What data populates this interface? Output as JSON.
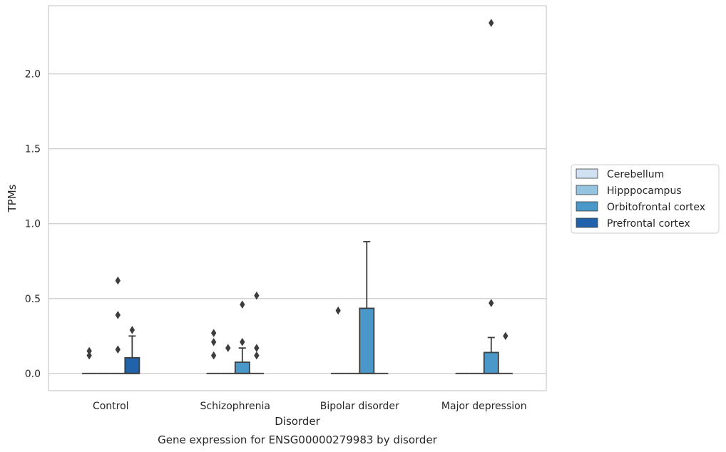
{
  "chart_data": {
    "type": "box",
    "title": "",
    "caption": "Gene expression for ENSG00000279983 by disorder",
    "xlabel": "Disorder",
    "ylabel": "TPMs",
    "ylim": [
      -0.115,
      2.455
    ],
    "yticks": [
      0.0,
      0.5,
      1.0,
      1.5,
      2.0
    ],
    "ytick_labels": [
      "0.0",
      "0.5",
      "1.0",
      "1.5",
      "2.0"
    ],
    "grid": "horizontal",
    "legend_position": "right",
    "categories": [
      "Control",
      "Schizophrenia",
      "Bipolar disorder",
      "Major depression"
    ],
    "series": [
      {
        "name": "Cerebellum",
        "color": "#d0e1f2",
        "boxes": [
          {
            "q1": 0,
            "median": 0,
            "q3": 0,
            "whisker_low": 0,
            "whisker_high": 0,
            "outliers": [
              0.15,
              0.12
            ]
          },
          {
            "q1": 0,
            "median": 0,
            "q3": 0,
            "whisker_low": 0,
            "whisker_high": 0,
            "outliers": [
              0.27,
              0.21,
              0.12
            ]
          },
          {
            "q1": 0,
            "median": 0,
            "q3": 0,
            "whisker_low": 0,
            "whisker_high": 0,
            "outliers": [
              0.42
            ]
          },
          {
            "q1": 0,
            "median": 0,
            "q3": 0,
            "whisker_low": 0,
            "whisker_high": 0,
            "outliers": []
          }
        ]
      },
      {
        "name": "Hipppocampus",
        "color": "#94c4df",
        "boxes": [
          {
            "q1": 0,
            "median": 0,
            "q3": 0,
            "whisker_low": 0,
            "whisker_high": 0,
            "outliers": []
          },
          {
            "q1": 0,
            "median": 0,
            "q3": 0,
            "whisker_low": 0,
            "whisker_high": 0,
            "outliers": [
              0.17
            ]
          },
          {
            "q1": 0,
            "median": 0,
            "q3": 0,
            "whisker_low": 0,
            "whisker_high": 0,
            "outliers": []
          },
          {
            "q1": 0,
            "median": 0,
            "q3": 0,
            "whisker_low": 0,
            "whisker_high": 0,
            "outliers": []
          }
        ]
      },
      {
        "name": "Orbitofrontal cortex",
        "color": "#4a98c9",
        "boxes": [
          {
            "q1": 0,
            "median": 0,
            "q3": 0,
            "whisker_low": 0,
            "whisker_high": 0,
            "outliers": [
              0.62,
              0.39,
              0.16
            ]
          },
          {
            "q1": 0,
            "median": 0,
            "q3": 0.075,
            "whisker_low": 0,
            "whisker_high": 0.17,
            "outliers": [
              0.46,
              0.21
            ]
          },
          {
            "q1": 0,
            "median": 0,
            "q3": 0.435,
            "whisker_low": 0,
            "whisker_high": 0.88,
            "outliers": []
          },
          {
            "q1": 0,
            "median": 0,
            "q3": 0.14,
            "whisker_low": 0,
            "whisker_high": 0.24,
            "outliers": [
              2.34,
              0.47
            ]
          }
        ]
      },
      {
        "name": "Prefrontal cortex",
        "color": "#2163aa",
        "boxes": [
          {
            "q1": 0,
            "median": 0,
            "q3": 0.105,
            "whisker_low": 0,
            "whisker_high": 0.25,
            "outliers": [
              0.29
            ]
          },
          {
            "q1": 0,
            "median": 0,
            "q3": 0,
            "whisker_low": 0,
            "whisker_high": 0,
            "outliers": [
              0.52,
              0.17,
              0.12
            ]
          },
          {
            "q1": 0,
            "median": 0,
            "q3": 0,
            "whisker_low": 0,
            "whisker_high": 0,
            "outliers": []
          },
          {
            "q1": 0,
            "median": 0,
            "q3": 0,
            "whisker_low": 0,
            "whisker_high": 0,
            "outliers": [
              0.25
            ]
          }
        ]
      }
    ]
  }
}
